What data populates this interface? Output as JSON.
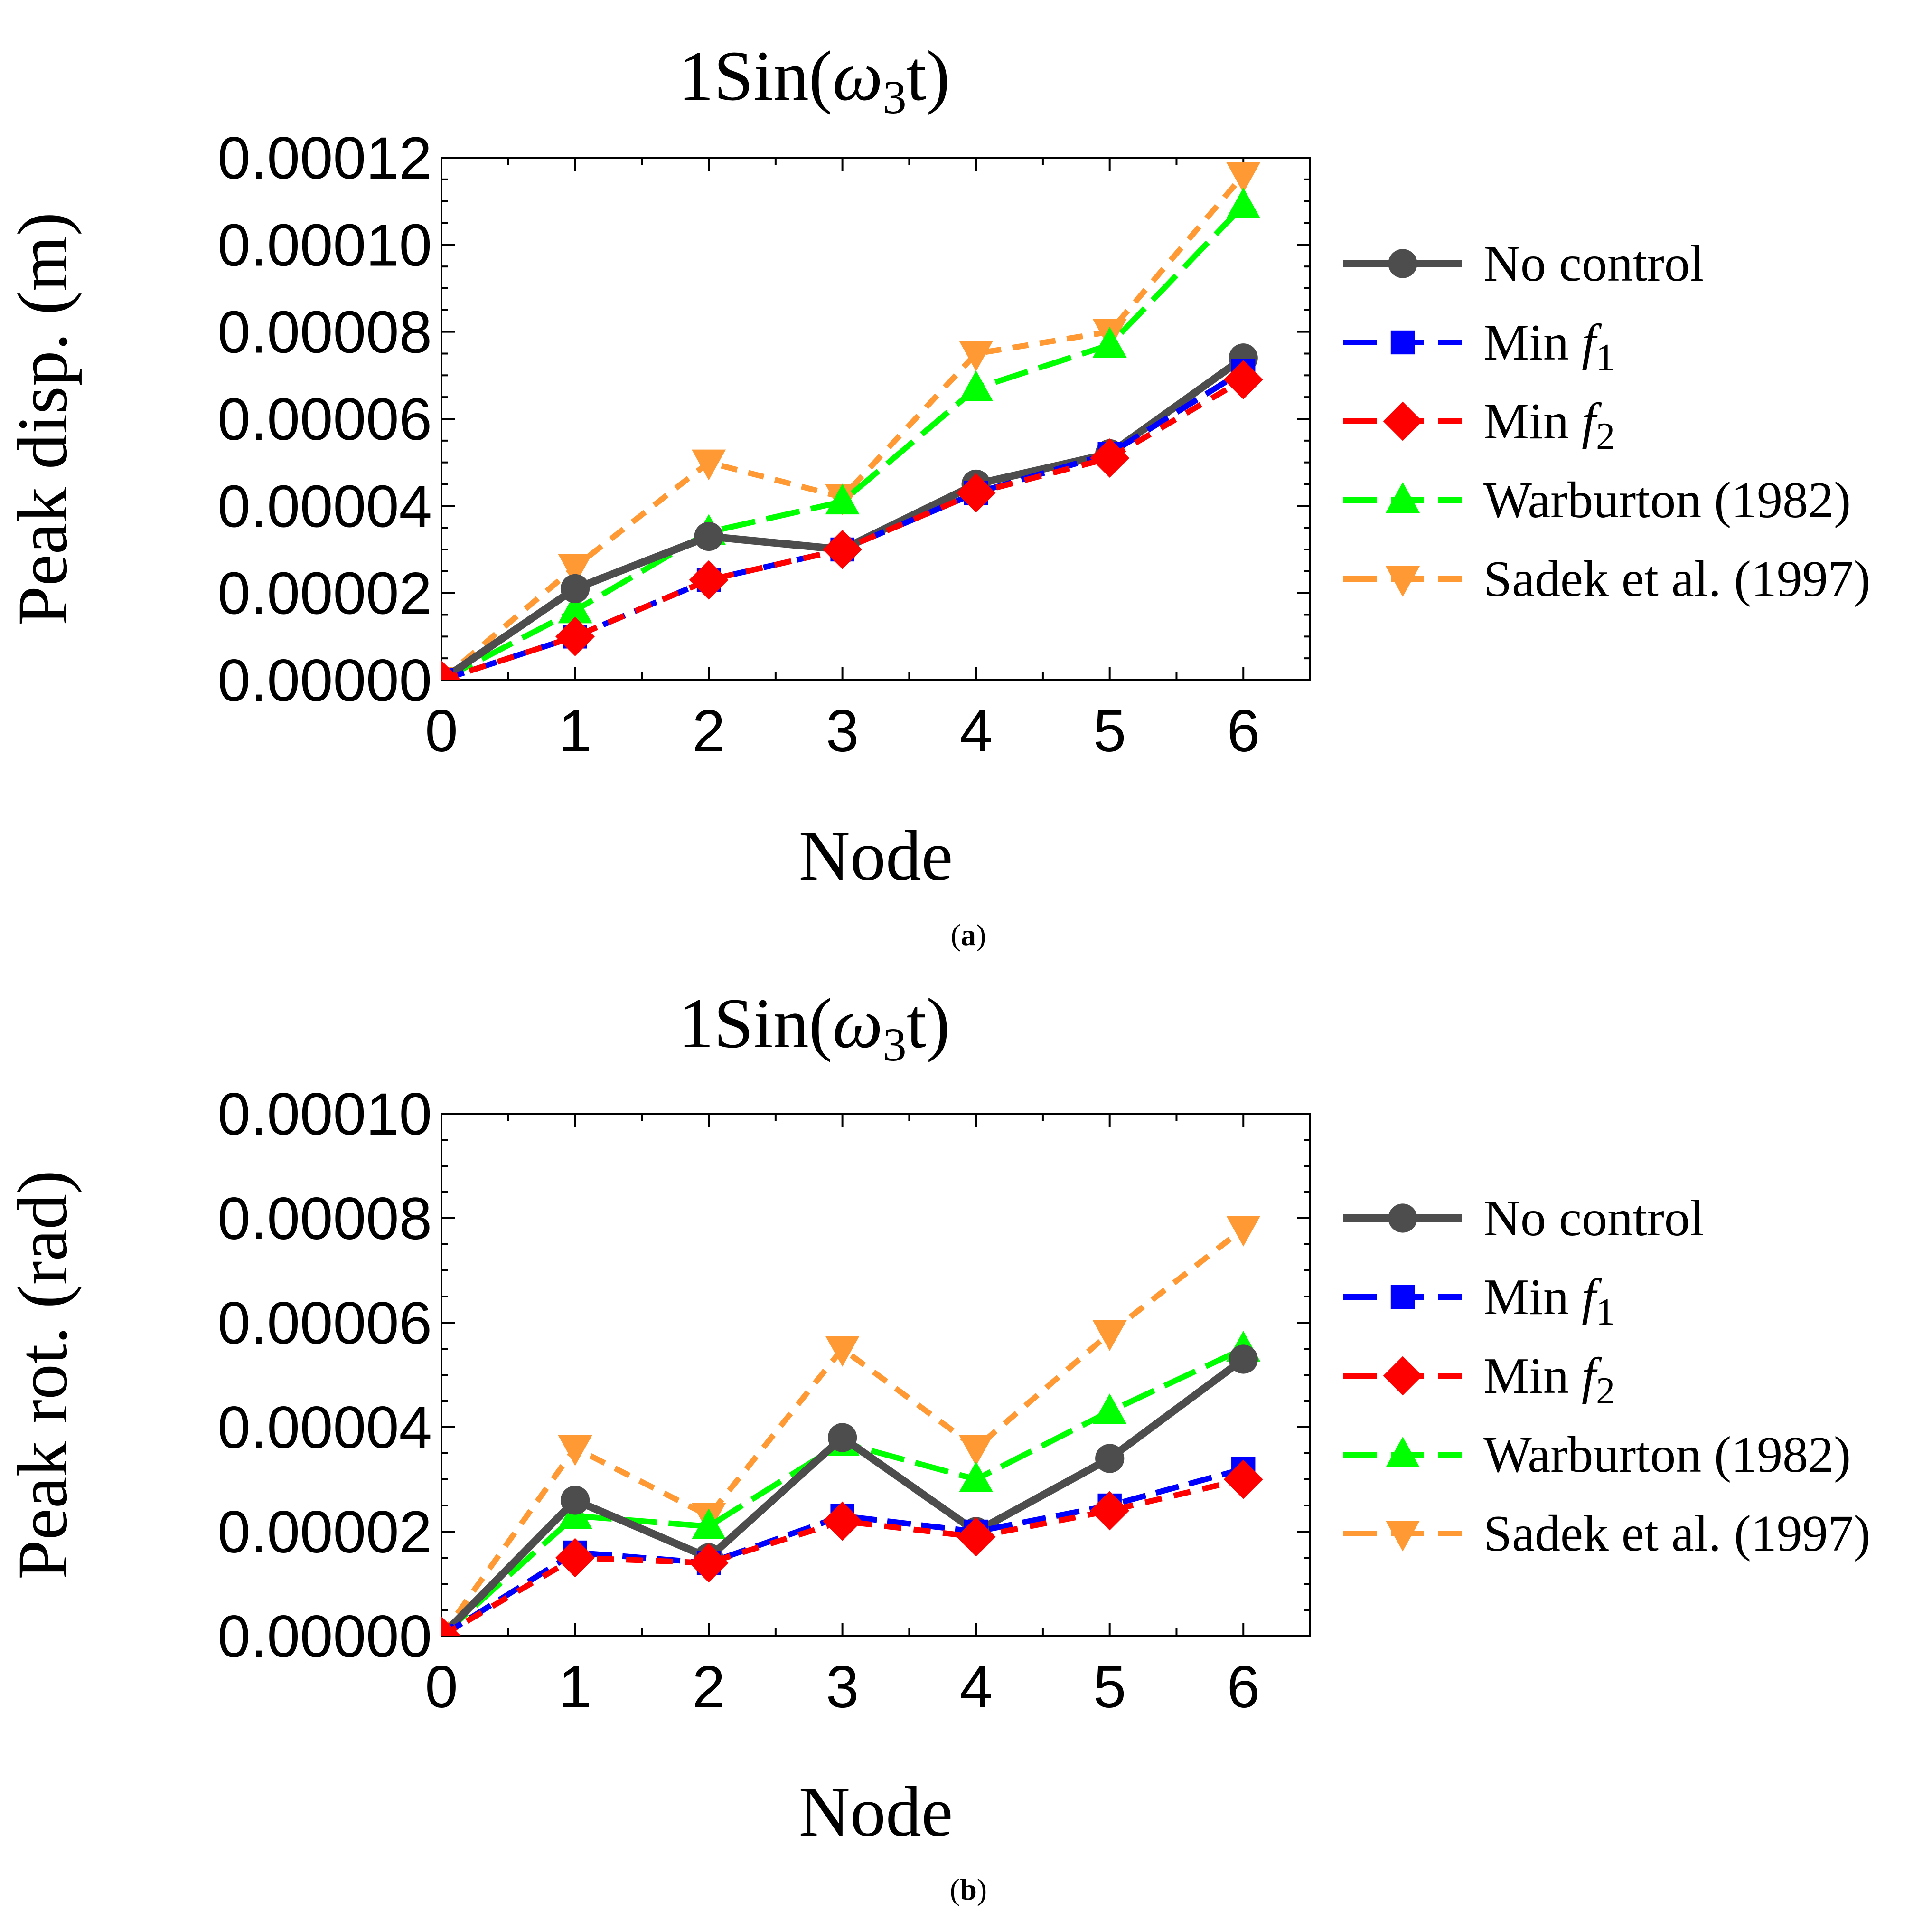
{
  "chart_data": [
    {
      "type": "line",
      "caption": "a",
      "title": "1Sin(ω3t)",
      "title_parts": {
        "pre": "1Sin(",
        "omega": "ω",
        "sub": "3",
        "post": "t)"
      },
      "xlabel": "Node",
      "ylabel": "Peak disp. (m)",
      "x": [
        0,
        1,
        2,
        3,
        4,
        5,
        6
      ],
      "xlim": [
        0,
        6.5
      ],
      "ylim": [
        0,
        0.00012
      ],
      "xticks": [
        "0",
        "1",
        "2",
        "3",
        "4",
        "5",
        "6"
      ],
      "yticks": [
        "0.00000",
        "0.00002",
        "0.00004",
        "0.00006",
        "0.00008",
        "0.00010",
        "0.00012"
      ],
      "ytick_values": [
        0,
        2e-05,
        4e-05,
        6e-05,
        8e-05,
        0.0001,
        0.00012
      ],
      "series": [
        {
          "name": "No control",
          "values": [
            0,
            2.1e-05,
            3.3e-05,
            3e-05,
            4.5e-05,
            5.2e-05,
            7.4e-05
          ]
        },
        {
          "name": "Min f1",
          "values": [
            0,
            1e-05,
            2.3e-05,
            3e-05,
            4.3e-05,
            5.2e-05,
            7.1e-05
          ]
        },
        {
          "name": "Min f2",
          "values": [
            0,
            1e-05,
            2.3e-05,
            3e-05,
            4.3e-05,
            5.1e-05,
            6.9e-05
          ]
        },
        {
          "name": "Warburton (1982)",
          "values": [
            0,
            1.6e-05,
            3.4e-05,
            4.1e-05,
            6.7e-05,
            7.7e-05,
            0.000109
          ]
        },
        {
          "name": "Sadek et al. (1997)",
          "values": [
            0,
            2.6e-05,
            5e-05,
            4.2e-05,
            7.5e-05,
            8e-05,
            0.000116
          ]
        }
      ]
    },
    {
      "type": "line",
      "caption": "b",
      "title": "1Sin(ω3t)",
      "title_parts": {
        "pre": "1Sin(",
        "omega": "ω",
        "sub": "3",
        "post": "t)"
      },
      "xlabel": "Node",
      "ylabel": "Peak rot. (rad)",
      "x": [
        0,
        1,
        2,
        3,
        4,
        5,
        6
      ],
      "xlim": [
        0,
        6.5
      ],
      "ylim": [
        0,
        0.0001
      ],
      "xticks": [
        "0",
        "1",
        "2",
        "3",
        "4",
        "5",
        "6"
      ],
      "yticks": [
        "0.00000",
        "0.00002",
        "0.00004",
        "0.00006",
        "0.00008",
        "0.00010"
      ],
      "ytick_values": [
        0,
        2e-05,
        4e-05,
        6e-05,
        8e-05,
        0.0001
      ],
      "series": [
        {
          "name": "No control",
          "values": [
            0,
            2.6e-05,
            1.5e-05,
            3.8e-05,
            2e-05,
            3.4e-05,
            5.3e-05
          ]
        },
        {
          "name": "Min f1",
          "values": [
            0,
            1.6e-05,
            1.4e-05,
            2.3e-05,
            2e-05,
            2.5e-05,
            3.2e-05
          ]
        },
        {
          "name": "Min f2",
          "values": [
            0,
            1.5e-05,
            1.4e-05,
            2.2e-05,
            1.9e-05,
            2.4e-05,
            3e-05
          ]
        },
        {
          "name": "Warburton (1982)",
          "values": [
            0,
            2.3e-05,
            2.1e-05,
            3.7e-05,
            3e-05,
            4.3e-05,
            5.5e-05
          ]
        },
        {
          "name": "Sadek et al. (1997)",
          "values": [
            0,
            3.6e-05,
            2.3e-05,
            5.5e-05,
            3.6e-05,
            5.8e-05,
            7.8e-05
          ]
        }
      ]
    }
  ],
  "legend": [
    {
      "name": "No control",
      "label": "No control",
      "label_main": "No control",
      "label_sub": "",
      "color": "#4d4d4d",
      "dash": "",
      "marker": "circle",
      "width": 16
    },
    {
      "name": "Min f1",
      "label": "Min f1",
      "label_main": "Min ",
      "label_italic": "f",
      "label_sub": "1",
      "color": "#0000ff",
      "dash": "50 22",
      "marker": "square",
      "width": 12
    },
    {
      "name": "Min f2",
      "label": "Min f2",
      "label_main": "Min ",
      "label_italic": "f",
      "label_sub": "2",
      "color": "#ff0000",
      "dash": "36 26",
      "marker": "diamond",
      "width": 12
    },
    {
      "name": "Warburton (1982)",
      "label": "Warburton (1982)",
      "label_main": "Warburton (1982)",
      "label_sub": "",
      "color": "#00ff00",
      "dash": "72 24",
      "marker": "triangle-up",
      "width": 12
    },
    {
      "name": "Sadek et al. (1997)",
      "label": "Sadek et al. (1997)",
      "label_main": "Sadek et al. (1997)",
      "label_sub": "",
      "color": "#ff9933",
      "dash": "34 24",
      "marker": "triangle-down",
      "width": 12
    }
  ]
}
